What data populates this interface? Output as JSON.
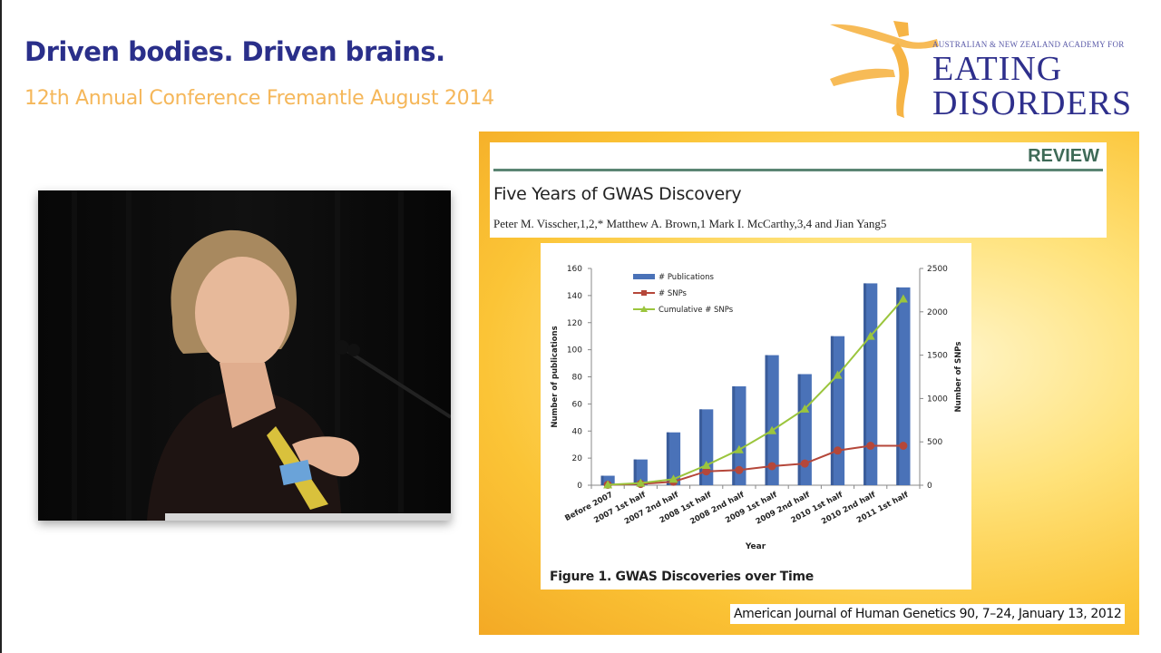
{
  "conference": {
    "title": "Driven bodies. Driven brains.",
    "subtitle": "12th Annual Conference Fremantle August 2014"
  },
  "logo": {
    "org_line": "AUSTRALIAN & NEW ZEALAND ACADEMY FOR",
    "name_line1": "EATING",
    "name_line2": "DISORDERS",
    "colors": {
      "figure": "#f6b445",
      "text": "#2e2f8c"
    }
  },
  "video": {
    "description": "Speaker at podium with microphone, dark curtain background"
  },
  "slide": {
    "paper": {
      "section_label": "REVIEW",
      "title": "Five Years of GWAS Discovery",
      "authors": "Peter M. Visscher,1,2,* Matthew A. Brown,1 Mark I. McCarthy,3,4 and Jian Yang5"
    },
    "figure_caption": "Figure 1.   GWAS Discoveries over Time",
    "citation": "American Journal of Human Genetics 90, 7–24, January 13, 2012"
  },
  "chart_data": {
    "type": "bar",
    "title": "",
    "xlabel": "Year",
    "ylabel": "Number of publications",
    "y2label": "Number of SNPs",
    "ylim": [
      0,
      160
    ],
    "y2lim": [
      0,
      2500
    ],
    "yticks": [
      0,
      20,
      40,
      60,
      80,
      100,
      120,
      140,
      160
    ],
    "y2ticks": [
      0,
      500,
      1000,
      1500,
      2000,
      2500
    ],
    "grid": false,
    "legend_position": "upper-left-inside",
    "categories": [
      "Before 2007",
      "2007 1st half",
      "2007 2nd half",
      "2008 1st half",
      "2008 2nd half",
      "2009 1st half",
      "2009 2nd half",
      "2010 1st half",
      "2010 2nd half",
      "2011 1st half"
    ],
    "series": [
      {
        "name": "# Publications",
        "type": "bar",
        "axis": "left",
        "color": "#4a72b8",
        "values": [
          7,
          19,
          39,
          56,
          73,
          96,
          82,
          110,
          149,
          146
        ]
      },
      {
        "name": "# SNPs",
        "type": "line",
        "marker": "square",
        "axis": "right",
        "color": "#b5473a",
        "values": [
          5,
          15,
          40,
          160,
          175,
          220,
          250,
          400,
          455,
          455
        ]
      },
      {
        "name": "Cumulative # SNPs",
        "type": "line",
        "marker": "triangle",
        "axis": "right",
        "color": "#9bc53d",
        "values": [
          5,
          25,
          70,
          230,
          410,
          630,
          880,
          1270,
          1720,
          2150
        ]
      }
    ]
  }
}
